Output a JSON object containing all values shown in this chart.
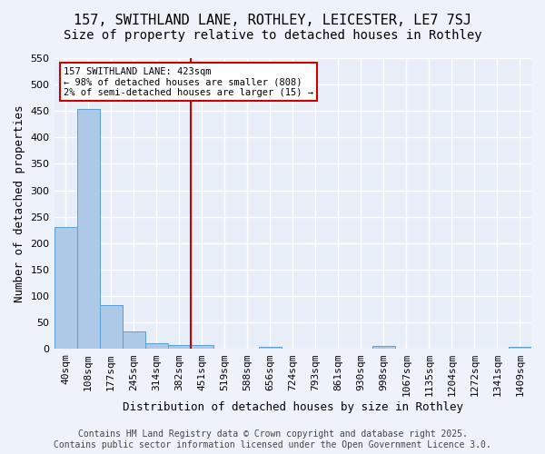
{
  "title_line1": "157, SWITHLAND LANE, ROTHLEY, LEICESTER, LE7 7SJ",
  "title_line2": "Size of property relative to detached houses in Rothley",
  "xlabel": "Distribution of detached houses by size in Rothley",
  "ylabel": "Number of detached properties",
  "bar_color": "#adc9e8",
  "bar_edge_color": "#5a9fd4",
  "bg_color": "#e8eef8",
  "fig_color": "#eef2fa",
  "grid_color": "#ffffff",
  "vline_color": "#cc0000",
  "vline_x_index": 6,
  "annotation_box_color": "#cc0000",
  "annotation_text_line1": "157 SWITHLAND LANE: 423sqm",
  "annotation_text_line2": "← 98% of detached houses are smaller (808)",
  "annotation_text_line3": "2% of semi-detached houses are larger (15) →",
  "categories": [
    "40sqm",
    "108sqm",
    "177sqm",
    "245sqm",
    "314sqm",
    "382sqm",
    "451sqm",
    "519sqm",
    "588sqm",
    "656sqm",
    "724sqm",
    "793sqm",
    "861sqm",
    "930sqm",
    "998sqm",
    "1067sqm",
    "1135sqm",
    "1204sqm",
    "1272sqm",
    "1341sqm",
    "1409sqm"
  ],
  "values": [
    230,
    453,
    83,
    34,
    11,
    8,
    7,
    0,
    0,
    4,
    0,
    0,
    0,
    0,
    5,
    0,
    0,
    0,
    0,
    0,
    4
  ],
  "ylim": [
    0,
    550
  ],
  "yticks": [
    0,
    50,
    100,
    150,
    200,
    250,
    300,
    350,
    400,
    450,
    500,
    550
  ],
  "footer_text": "Contains HM Land Registry data © Crown copyright and database right 2025.\nContains public sector information licensed under the Open Government Licence 3.0.",
  "title_fontsize": 11,
  "subtitle_fontsize": 10,
  "axis_label_fontsize": 9,
  "tick_fontsize": 8,
  "footer_fontsize": 7
}
